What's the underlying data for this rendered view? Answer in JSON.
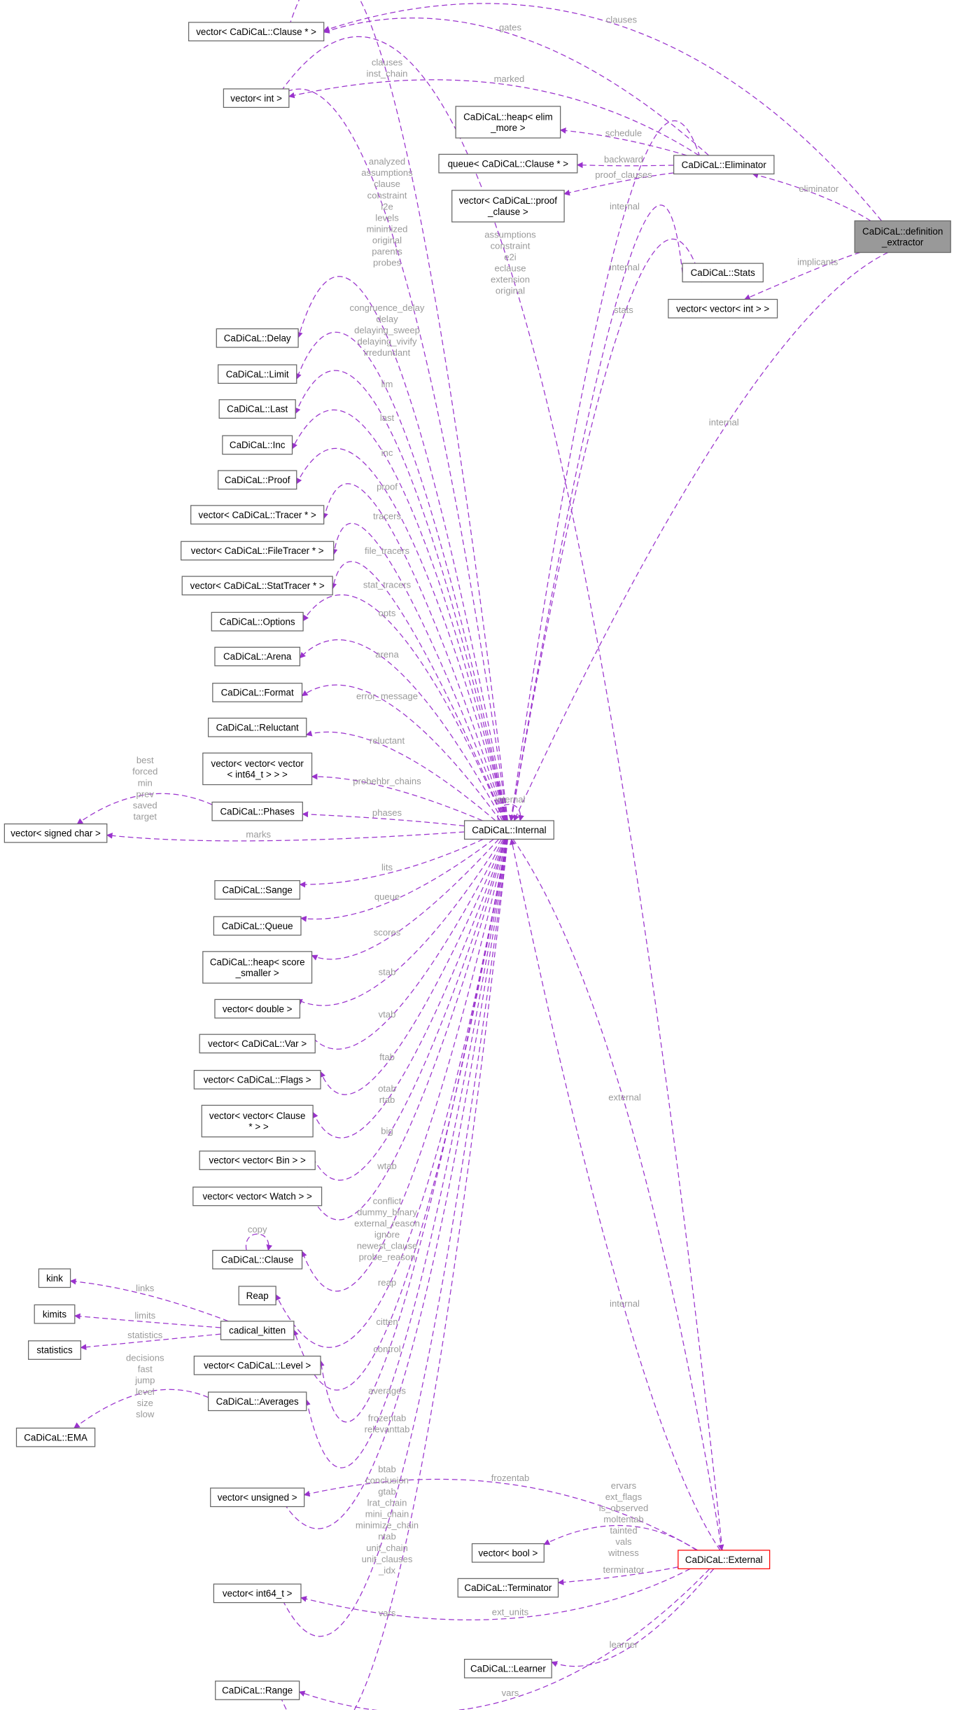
{
  "nodes": [
    "vector< CaDiCaL::Clause * >",
    "vector< int >",
    "CaDiCaL::heap< elim\n_more >",
    "queue< CaDiCaL::Clause * >",
    "CaDiCaL::Eliminator",
    "vector< CaDiCaL::proof\n_clause >",
    "CaDiCaL::definition\n_extractor",
    "CaDiCaL::Stats",
    "vector< vector< int > >",
    "CaDiCaL::Delay",
    "CaDiCaL::Limit",
    "CaDiCaL::Last",
    "CaDiCaL::Inc",
    "CaDiCaL::Proof",
    "vector< CaDiCaL::Tracer * >",
    "vector< CaDiCaL::FileTracer * >",
    "vector< CaDiCaL::StatTracer * >",
    "CaDiCaL::Options",
    "CaDiCaL::Arena",
    "CaDiCaL::Format",
    "CaDiCaL::Reluctant",
    "vector< vector< vector\n< int64_t > > >",
    "CaDiCaL::Phases",
    "vector< signed char >",
    "CaDiCaL::Internal",
    "CaDiCaL::Sange",
    "CaDiCaL::Queue",
    "CaDiCaL::heap< score\n_smaller >",
    "vector< double >",
    "vector< CaDiCaL::Var >",
    "vector< CaDiCaL::Flags >",
    "vector< vector< Clause\n * > >",
    "vector< vector< Bin > >",
    "vector< vector< Watch > >",
    "CaDiCaL::Clause",
    "kink",
    "Reap",
    "kimits",
    "cadical_kitten",
    "statistics",
    "vector< CaDiCaL::Level >",
    "CaDiCaL::Averages",
    "CaDiCaL::EMA",
    "vector< unsigned >",
    "vector< bool >",
    "CaDiCaL::External",
    "CaDiCaL::Terminator",
    "vector< int64_t >",
    "CaDiCaL::Learner",
    "CaDiCaL::Range"
  ],
  "edge_labels": [
    "clauses",
    "gates",
    "clauses\ninst_chain",
    "marked",
    "schedule",
    "backward",
    "proof_clauses",
    "internal",
    "eliminator",
    "analyzed\nassumptions\nclause\nconstraint\ni2e\nlevels\nminimized\noriginal\nparents\nprobes",
    "assumptions\nconstraint\ne2i\neclause\nextension\noriginal",
    "internal",
    "stats",
    "implicants",
    "internal",
    "congruence_delay\ndelay\ndelaying_sweep\ndelaying_vivify\nirredundant",
    "lim",
    "last",
    "inc",
    "proof",
    "tracers",
    "file_tracers",
    "stat_tracers",
    "opts",
    "arena",
    "error_message",
    "reluctant",
    "probehbr_chains",
    "best\nforced\nmin\nprev\nsaved\ntarget",
    "phases",
    "internal",
    "marks",
    "lits",
    "queue",
    "scores",
    "stab",
    "vtab",
    "ftab",
    "otab\nrtab",
    "big",
    "wtab",
    "conflict\ndummy_binary\nexternal_reason\nignore\nnewest_clause\nprobe_reason",
    "copy",
    "reap",
    "links",
    "limits",
    "statistics",
    "citten",
    "control",
    "decisions\nfast\njump\nlevel\nsize\nslow",
    "averages",
    "frozentab\nrelevanttab",
    "external",
    "internal",
    "btab\nconclusion\ngtab\nlrat_chain\nmini_chain\nminimize_chain\nntab\nunit_chain\nunit_clauses\n_idx",
    "frozentab",
    "ervars\next_flags\nis_observed\nmoltentab\ntainted\nvals\nwitness",
    "terminator",
    "vars",
    "ext_units",
    "learner",
    "vars"
  ]
}
